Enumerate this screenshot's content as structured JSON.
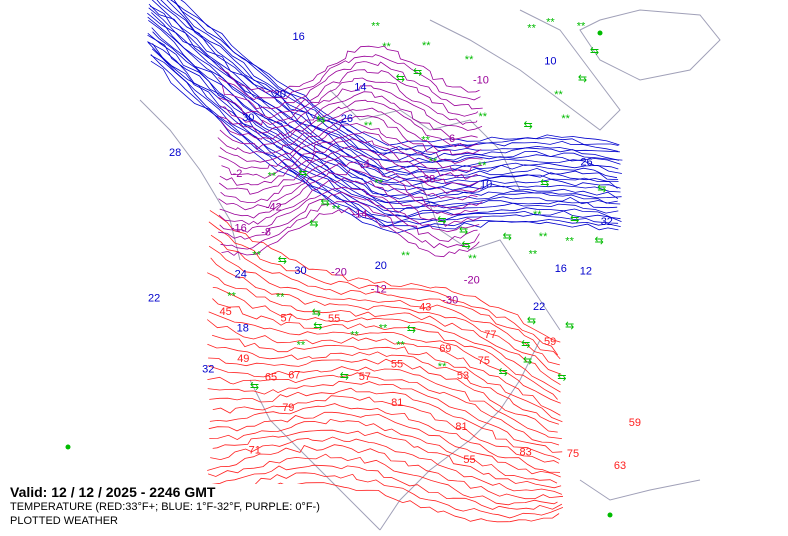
{
  "legend": {
    "valid": "Valid: 12 / 12 / 2025  -  2246 GMT",
    "temperature": "TEMPERATURE (RED:33°F+; BLUE: 1°F-32°F, PURPLE: 0°F-)",
    "plotted": "PLOTTED WEATHER"
  },
  "colors": {
    "warm": "#ff2020",
    "cold": "#0000cc",
    "frigid": "#990099",
    "coast": "#a0a0b8",
    "weather": "#00bb00"
  },
  "contour_labels": {
    "warm": [
      "55",
      "59",
      "55",
      "57",
      "63",
      "77",
      "67",
      "75",
      "65",
      "71",
      "43",
      "49",
      "45",
      "53",
      "57",
      "59",
      "69",
      "81",
      "83",
      "79",
      "75",
      "81",
      "55"
    ],
    "cold": [
      "10",
      "22",
      "30",
      "32",
      "16",
      "18",
      "20",
      "24",
      "26",
      "22",
      "14",
      "20",
      "30",
      "26",
      "32",
      "28",
      "12",
      "16",
      "10"
    ],
    "frigid": [
      "-38",
      "-42",
      "-20",
      "-30",
      "-10",
      "-12",
      "-14",
      "-8",
      "-16",
      "-20",
      "-4",
      "-2",
      "-6"
    ]
  }
}
